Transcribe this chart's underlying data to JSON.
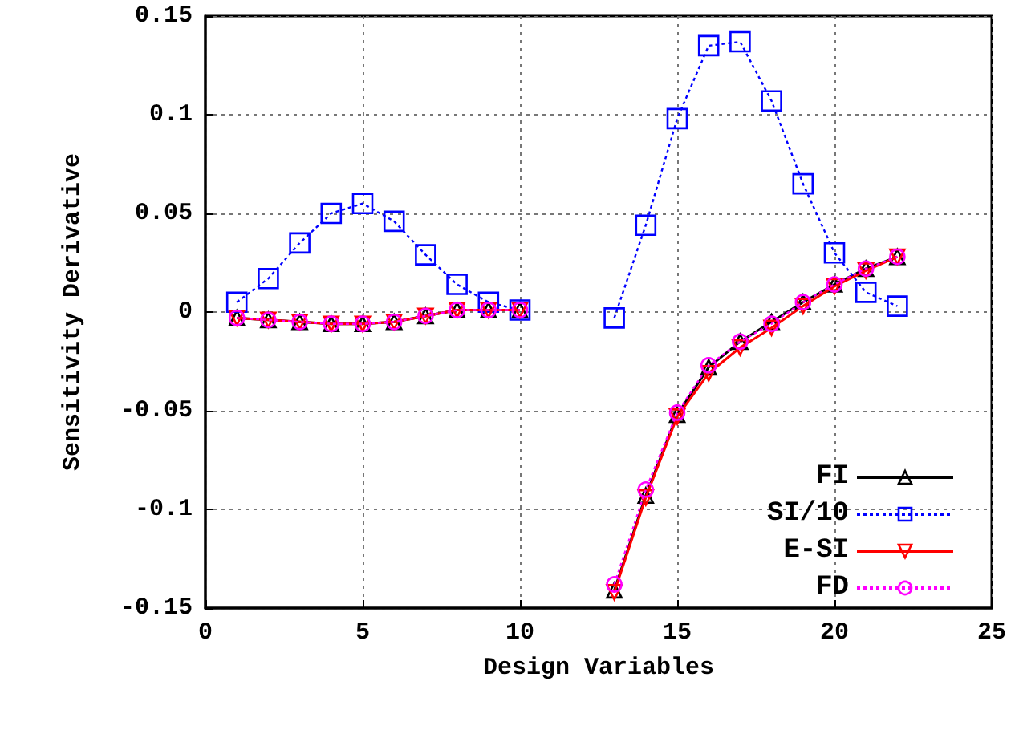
{
  "chart_data": {
    "type": "line",
    "xlabel": "Design Variables",
    "ylabel": "Sensitivity Derivative",
    "xlim": [
      0,
      25
    ],
    "xticks": [
      0,
      5,
      10,
      15,
      20,
      25
    ],
    "ylim": [
      -0.15,
      0.15
    ],
    "yticks": [
      -0.15,
      -0.1,
      -0.05,
      0,
      0.05,
      0.1,
      0.15
    ],
    "grid": true,
    "legend": "bottom right",
    "series": [
      {
        "name": "FI",
        "color": "#000000",
        "marker": "triangle",
        "line_style": "solid",
        "x": [
          1,
          2,
          3,
          4,
          5,
          6,
          7,
          8,
          9,
          10,
          null,
          13,
          14,
          15,
          16,
          17,
          18,
          19,
          20,
          21,
          22
        ],
        "values": [
          -0.003,
          -0.004,
          -0.005,
          -0.006,
          -0.006,
          -0.005,
          -0.002,
          0.001,
          0.001,
          0.001,
          null,
          -0.141,
          -0.093,
          -0.052,
          -0.028,
          -0.015,
          -0.005,
          0.005,
          0.014,
          0.022,
          0.028
        ]
      },
      {
        "name": "SI/10",
        "color": "#0000ff",
        "marker": "square",
        "line_style": "dotted",
        "x": [
          1,
          2,
          3,
          4,
          5,
          6,
          7,
          8,
          9,
          10,
          null,
          13,
          14,
          15,
          16,
          17,
          18,
          19,
          20,
          21,
          22
        ],
        "values": [
          0.005,
          0.017,
          0.035,
          0.05,
          0.055,
          0.046,
          0.029,
          0.014,
          0.005,
          0.001,
          null,
          -0.003,
          0.044,
          0.098,
          0.135,
          0.137,
          0.107,
          0.065,
          0.03,
          0.01,
          0.003
        ]
      },
      {
        "name": "E-SI",
        "color": "#ff0000",
        "marker": "triangle-down",
        "line_style": "solid",
        "x": [
          1,
          2,
          3,
          4,
          5,
          6,
          7,
          8,
          9,
          10,
          null,
          13,
          14,
          15,
          16,
          17,
          18,
          19,
          20,
          21,
          22
        ],
        "values": [
          -0.003,
          -0.004,
          -0.005,
          -0.006,
          -0.006,
          -0.005,
          -0.002,
          0.001,
          0.001,
          0.001,
          null,
          -0.142,
          -0.094,
          -0.053,
          -0.031,
          -0.018,
          -0.008,
          0.003,
          0.013,
          0.021,
          0.028
        ]
      },
      {
        "name": "FD",
        "color": "#ff00ff",
        "marker": "circle",
        "line_style": "dotted",
        "x": [
          1,
          2,
          3,
          4,
          5,
          6,
          7,
          8,
          9,
          10,
          null,
          13,
          14,
          15,
          16,
          17,
          18,
          19,
          20,
          21,
          22
        ],
        "values": [
          -0.003,
          -0.004,
          -0.005,
          -0.006,
          -0.006,
          -0.005,
          -0.002,
          0.001,
          0.001,
          0.001,
          null,
          -0.138,
          -0.09,
          -0.051,
          -0.027,
          -0.015,
          -0.006,
          0.005,
          0.014,
          0.022,
          0.028
        ]
      }
    ]
  }
}
